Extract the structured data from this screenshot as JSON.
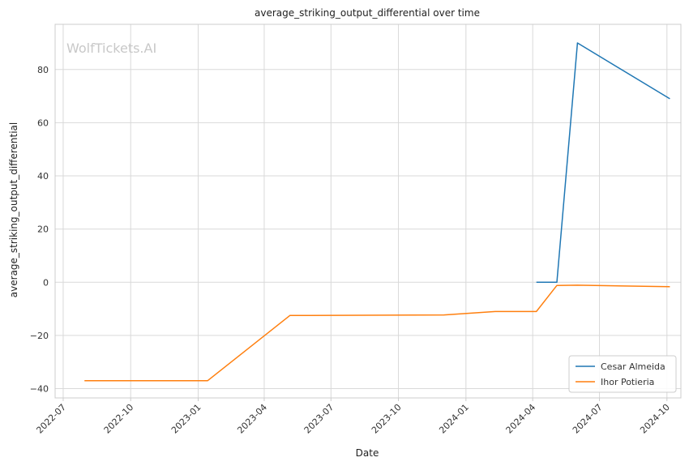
{
  "watermark": "WolfTickets.AI",
  "chart_data": {
    "type": "line",
    "title": "average_striking_output_differential over time",
    "xlabel": "Date",
    "ylabel": "average_striking_output_differential",
    "x_type": "date",
    "xlim": [
      "2022-06-20",
      "2024-10-20"
    ],
    "ylim": [
      -43.5,
      97
    ],
    "x_ticks": [
      "2022-07-01",
      "2022-10-01",
      "2023-01-01",
      "2023-04-01",
      "2023-07-01",
      "2023-10-01",
      "2024-01-01",
      "2024-04-01",
      "2024-07-01",
      "2024-10-01"
    ],
    "x_tick_labels": [
      "2022-07",
      "2022-10",
      "2023-01",
      "2023-04",
      "2023-07",
      "2023-10",
      "2024-01",
      "2024-04",
      "2024-07",
      "2024-10"
    ],
    "y_ticks": [
      -40,
      -20,
      0,
      20,
      40,
      60,
      80
    ],
    "y_tick_labels": [
      "−40",
      "−20",
      "0",
      "20",
      "40",
      "60",
      "80"
    ],
    "grid": true,
    "legend_position": "bottom-right",
    "series": [
      {
        "name": "Cesar Almeida",
        "color": "#1f77b4",
        "points": [
          {
            "x": "2024-04-06",
            "y": 0
          },
          {
            "x": "2024-05-04",
            "y": 0
          },
          {
            "x": "2024-06-01",
            "y": 90
          },
          {
            "x": "2024-10-05",
            "y": 69
          }
        ]
      },
      {
        "name": "Ihor Potieria",
        "color": "#ff7f0e",
        "points": [
          {
            "x": "2022-07-30",
            "y": -37
          },
          {
            "x": "2023-01-14",
            "y": -37
          },
          {
            "x": "2023-05-06",
            "y": -12.5
          },
          {
            "x": "2023-12-02",
            "y": -12.3
          },
          {
            "x": "2024-02-10",
            "y": -11
          },
          {
            "x": "2024-04-06",
            "y": -11
          },
          {
            "x": "2024-05-04",
            "y": -1.2
          },
          {
            "x": "2024-06-01",
            "y": -1.1
          },
          {
            "x": "2024-10-05",
            "y": -1.7
          }
        ]
      }
    ]
  }
}
